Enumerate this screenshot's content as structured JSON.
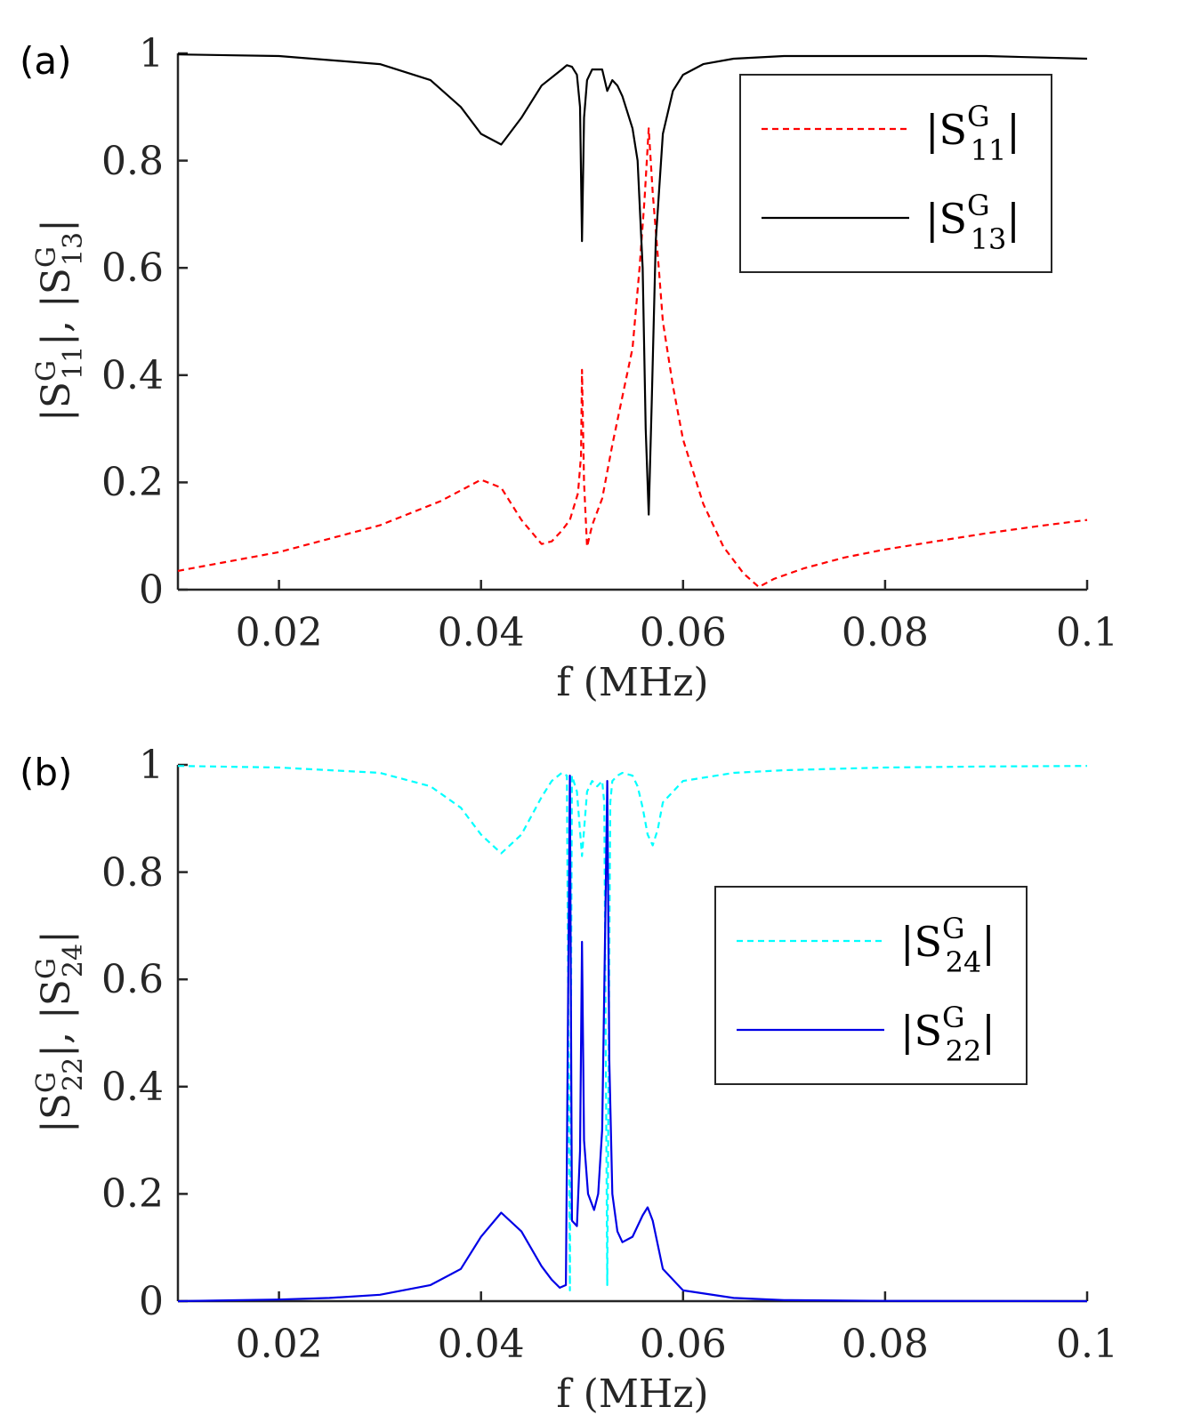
{
  "chart_data": [
    {
      "type": "line",
      "panel_label": "(a)",
      "xlabel": "f (MHz)",
      "ylabel": "|S11G|, |S13G|",
      "xlim": [
        0.01,
        0.1
      ],
      "ylim": [
        0,
        1
      ],
      "xticks": [
        "0.02",
        "0.04",
        "0.06",
        "0.08",
        "0.1"
      ],
      "yticks": [
        "0",
        "0.2",
        "0.4",
        "0.6",
        "0.8",
        "1"
      ],
      "legend": {
        "position": "top-right",
        "entries": [
          {
            "base": "|S",
            "sup": "G",
            "sub": "11",
            "close": "|"
          },
          {
            "base": "|S",
            "sup": "G",
            "sub": "13",
            "close": "|"
          }
        ]
      },
      "series": [
        {
          "name": "|S11G|",
          "color": "#ff0000",
          "style": "dashed",
          "x": [
            0.01,
            0.02,
            0.03,
            0.036,
            0.04,
            0.042,
            0.044,
            0.046,
            0.047,
            0.048,
            0.0488,
            0.0496,
            0.0499,
            0.05,
            0.0502,
            0.0505,
            0.051,
            0.052,
            0.053,
            0.054,
            0.055,
            0.0557,
            0.0562,
            0.0566,
            0.057,
            0.0576,
            0.058,
            0.059,
            0.06,
            0.062,
            0.064,
            0.066,
            0.0675,
            0.069,
            0.072,
            0.076,
            0.08,
            0.085,
            0.09,
            0.095,
            0.1
          ],
          "y": [
            0.035,
            0.07,
            0.12,
            0.165,
            0.205,
            0.19,
            0.13,
            0.085,
            0.09,
            0.11,
            0.13,
            0.18,
            0.25,
            0.41,
            0.2,
            0.08,
            0.12,
            0.17,
            0.27,
            0.36,
            0.45,
            0.6,
            0.73,
            0.86,
            0.74,
            0.6,
            0.5,
            0.38,
            0.28,
            0.16,
            0.08,
            0.03,
            0.005,
            0.02,
            0.04,
            0.06,
            0.075,
            0.09,
            0.105,
            0.118,
            0.13
          ]
        },
        {
          "name": "|S13G|",
          "color": "#000000",
          "style": "solid",
          "x": [
            0.01,
            0.02,
            0.03,
            0.035,
            0.038,
            0.04,
            0.042,
            0.044,
            0.046,
            0.048,
            0.0485,
            0.049,
            0.0495,
            0.0498,
            0.05,
            0.0502,
            0.0505,
            0.051,
            0.052,
            0.0525,
            0.053,
            0.0535,
            0.054,
            0.055,
            0.0555,
            0.056,
            0.0563,
            0.0566,
            0.0569,
            0.0573,
            0.058,
            0.059,
            0.06,
            0.062,
            0.065,
            0.07,
            0.08,
            0.09,
            0.1
          ],
          "y": [
            0.998,
            0.995,
            0.98,
            0.95,
            0.9,
            0.85,
            0.83,
            0.88,
            0.94,
            0.97,
            0.978,
            0.975,
            0.96,
            0.9,
            0.65,
            0.88,
            0.95,
            0.97,
            0.97,
            0.93,
            0.95,
            0.94,
            0.92,
            0.86,
            0.8,
            0.6,
            0.3,
            0.14,
            0.35,
            0.65,
            0.85,
            0.93,
            0.96,
            0.98,
            0.99,
            0.995,
            0.995,
            0.995,
            0.99
          ]
        }
      ]
    },
    {
      "type": "line",
      "panel_label": "(b)",
      "xlabel": "f (MHz)",
      "ylabel": "|S22G|, |S24G|",
      "xlim": [
        0.01,
        0.1
      ],
      "ylim": [
        0,
        1
      ],
      "xticks": [
        "0.02",
        "0.04",
        "0.06",
        "0.08",
        "0.1"
      ],
      "yticks": [
        "0",
        "0.2",
        "0.4",
        "0.6",
        "0.8",
        "1"
      ],
      "legend": {
        "position": "middle-right",
        "entries": [
          {
            "base": "|S",
            "sup": "G",
            "sub": "24",
            "close": "|"
          },
          {
            "base": "|S",
            "sup": "G",
            "sub": "22",
            "close": "|"
          }
        ]
      },
      "series": [
        {
          "name": "|S24G|",
          "color": "#00ffff",
          "style": "dashed",
          "x": [
            0.01,
            0.02,
            0.03,
            0.035,
            0.038,
            0.04,
            0.042,
            0.044,
            0.046,
            0.047,
            0.048,
            0.0485,
            0.0488,
            0.049,
            0.0495,
            0.05,
            0.0505,
            0.051,
            0.0515,
            0.052,
            0.0522,
            0.0525,
            0.0528,
            0.053,
            0.0535,
            0.054,
            0.055,
            0.0555,
            0.056,
            0.0565,
            0.057,
            0.0575,
            0.058,
            0.06,
            0.065,
            0.07,
            0.08,
            0.09,
            0.1
          ],
          "y": [
            0.998,
            0.995,
            0.985,
            0.96,
            0.92,
            0.87,
            0.835,
            0.87,
            0.94,
            0.97,
            0.985,
            0.98,
            0.02,
            0.98,
            0.95,
            0.83,
            0.95,
            0.97,
            0.96,
            0.97,
            0.93,
            0.03,
            0.93,
            0.97,
            0.98,
            0.985,
            0.98,
            0.96,
            0.92,
            0.87,
            0.85,
            0.88,
            0.93,
            0.97,
            0.985,
            0.99,
            0.995,
            0.997,
            0.998
          ]
        },
        {
          "name": "|S22G|",
          "color": "#0000e6",
          "style": "solid",
          "x": [
            0.01,
            0.02,
            0.025,
            0.03,
            0.035,
            0.038,
            0.04,
            0.042,
            0.044,
            0.046,
            0.047,
            0.0478,
            0.0484,
            0.0486,
            0.0488,
            0.049,
            0.0495,
            0.0498,
            0.05,
            0.0502,
            0.0506,
            0.0512,
            0.0516,
            0.052,
            0.0523,
            0.0525,
            0.0527,
            0.053,
            0.0535,
            0.054,
            0.055,
            0.056,
            0.0565,
            0.057,
            0.058,
            0.06,
            0.065,
            0.07,
            0.08,
            0.1
          ],
          "y": [
            0.0,
            0.003,
            0.006,
            0.012,
            0.03,
            0.06,
            0.12,
            0.165,
            0.13,
            0.065,
            0.04,
            0.025,
            0.03,
            0.5,
            0.98,
            0.15,
            0.14,
            0.28,
            0.67,
            0.3,
            0.2,
            0.17,
            0.2,
            0.32,
            0.7,
            0.97,
            0.45,
            0.2,
            0.13,
            0.11,
            0.12,
            0.16,
            0.175,
            0.15,
            0.06,
            0.02,
            0.006,
            0.002,
            0.0005,
            0.0
          ]
        }
      ]
    }
  ]
}
